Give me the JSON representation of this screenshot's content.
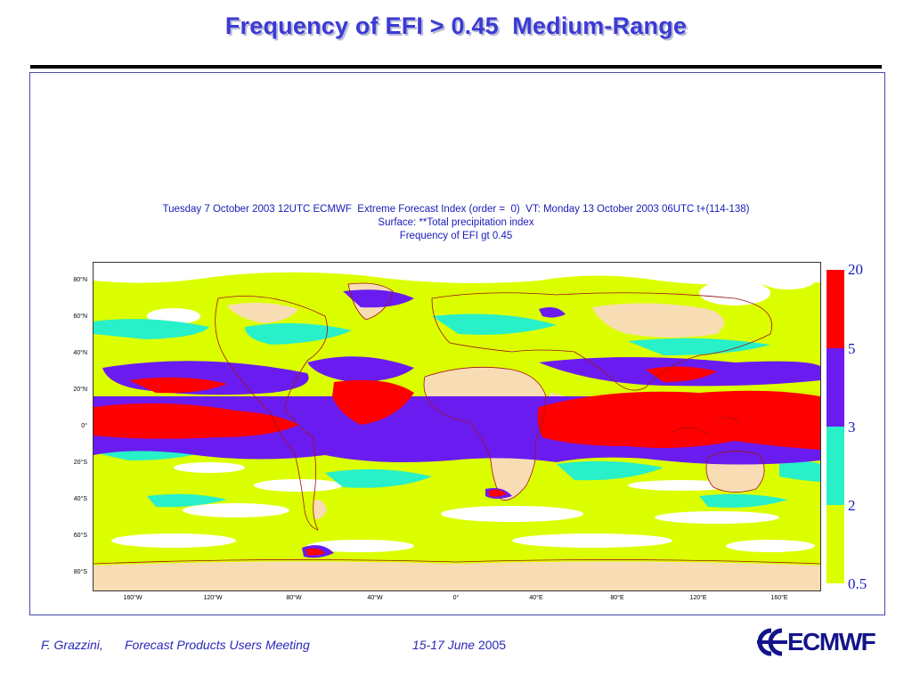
{
  "slide": {
    "title": "Frequency of EFI > 0.45  Medium-Range"
  },
  "plot": {
    "header_line1": "Tuesday 7 October 2003 12UTC ECMWF  Extreme Forecast Index (order =  0)  VT: Monday 13 October 2003 06UTC t+(114-138)",
    "header_line2": "Surface: **Total precipitation index",
    "header_line3": "Frequency of EFI gt 0.45"
  },
  "map_axes": {
    "lat_labels": [
      "80°N",
      "60°N",
      "40°N",
      "20°N",
      "0°",
      "20°S",
      "40°S",
      "60°S",
      "80°S"
    ],
    "lon_labels": [
      "160°W",
      "120°W",
      "80°W",
      "40°W",
      "0°",
      "40°E",
      "80°E",
      "120°E",
      "160°E"
    ]
  },
  "legend": {
    "boundaries": [
      "20",
      "5",
      "3",
      "2",
      "0.5"
    ],
    "colors": {
      "above_5": "#ff0000",
      "3_to_5": "#6a1cf0",
      "2_to_3": "#28f0c8",
      "0.5_to_2": "#dcff00"
    }
  },
  "map_colors": {
    "land_no_signal": "#f8dcb4",
    "ocean_no_signal": "#ffffff",
    "coastline": "#a01414"
  },
  "footer": {
    "author": "F. Grazzini,",
    "meeting": "Forecast Products Users Meeting",
    "date_prefix": "15-17 June",
    "date_year": " 2005"
  },
  "logo": {
    "text": "ECMWF"
  }
}
